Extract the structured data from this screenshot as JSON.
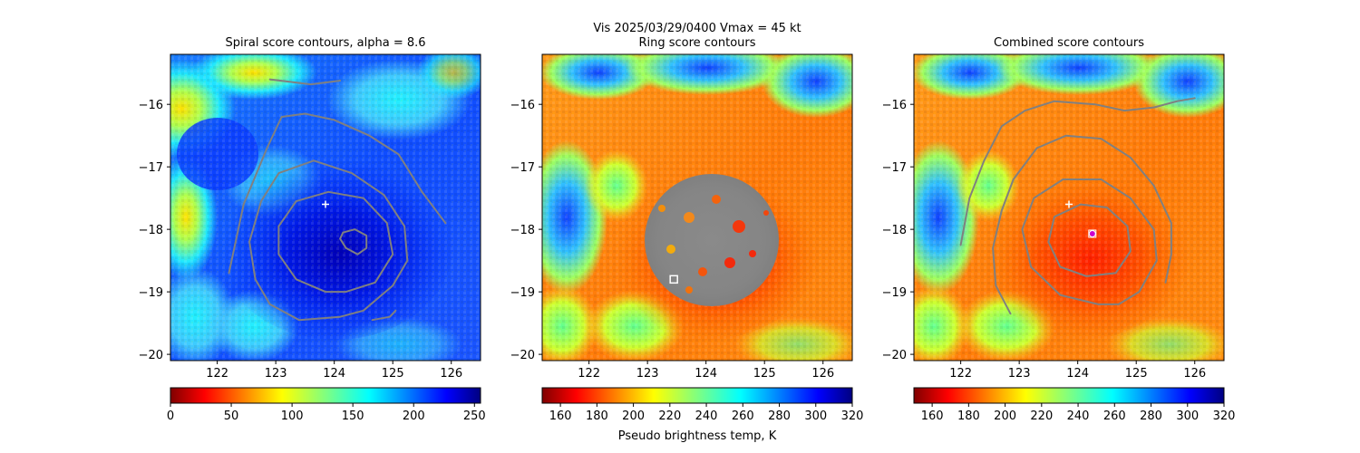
{
  "figure": {
    "suptitle_line1": "Vis  2025/03/29/0400    Vmax = 45 kt",
    "colorbar_label": "Pseudo brightness temp, K"
  },
  "colors": {
    "contour": "#808080",
    "marker": "#ffffff",
    "best_point": "#cc00cc"
  },
  "chart_data": [
    {
      "type": "heatmap",
      "title": "Spiral score contours, alpha =  8.6",
      "colormap": "jet_r",
      "xlim": [
        121.2,
        126.5
      ],
      "ylim": [
        -20.1,
        -15.2
      ],
      "xticks": [
        122,
        123,
        124,
        125,
        126
      ],
      "yticks": [
        -16,
        -17,
        -18,
        -19,
        -20
      ],
      "colorbar": {
        "min": 0,
        "max": 255,
        "ticks": [
          0,
          50,
          100,
          150,
          200,
          250
        ]
      },
      "markers": [
        {
          "label": "+",
          "x": 123.85,
          "y": -17.6
        }
      ],
      "contours": [
        [
          [
            122.2,
            -18.7
          ],
          [
            122.45,
            -17.6
          ],
          [
            122.85,
            -16.7
          ],
          [
            123.1,
            -16.2
          ],
          [
            123.5,
            -16.15
          ],
          [
            124.0,
            -16.25
          ],
          [
            124.6,
            -16.5
          ],
          [
            125.1,
            -16.8
          ],
          [
            125.5,
            -17.4
          ],
          [
            125.9,
            -17.9
          ]
        ],
        [
          [
            124.1,
            -19.4
          ],
          [
            123.4,
            -19.45
          ],
          [
            122.9,
            -19.2
          ],
          [
            122.65,
            -18.8
          ],
          [
            122.55,
            -18.2
          ],
          [
            122.75,
            -17.55
          ],
          [
            123.05,
            -17.1
          ],
          [
            123.65,
            -16.9
          ],
          [
            124.3,
            -17.1
          ],
          [
            124.85,
            -17.45
          ],
          [
            125.2,
            -17.95
          ],
          [
            125.25,
            -18.5
          ],
          [
            125.0,
            -18.9
          ],
          [
            124.5,
            -19.3
          ],
          [
            124.1,
            -19.4
          ]
        ],
        [
          [
            123.85,
            -19.0
          ],
          [
            123.35,
            -18.8
          ],
          [
            123.05,
            -18.4
          ],
          [
            123.05,
            -17.95
          ],
          [
            123.35,
            -17.55
          ],
          [
            123.9,
            -17.4
          ],
          [
            124.5,
            -17.5
          ],
          [
            124.9,
            -17.9
          ],
          [
            125.0,
            -18.4
          ],
          [
            124.7,
            -18.85
          ],
          [
            124.2,
            -19.0
          ],
          [
            123.85,
            -19.0
          ]
        ],
        [
          [
            124.15,
            -18.05
          ],
          [
            124.35,
            -18.0
          ],
          [
            124.55,
            -18.1
          ],
          [
            124.55,
            -18.3
          ],
          [
            124.4,
            -18.4
          ],
          [
            124.2,
            -18.3
          ],
          [
            124.1,
            -18.15
          ],
          [
            124.15,
            -18.05
          ]
        ],
        [
          [
            124.65,
            -19.45
          ],
          [
            124.95,
            -19.4
          ],
          [
            125.05,
            -19.3
          ]
        ],
        [
          [
            122.9,
            -15.6
          ],
          [
            123.6,
            -15.68
          ],
          [
            124.1,
            -15.62
          ]
        ]
      ]
    },
    {
      "type": "heatmap",
      "title": "Ring score contours",
      "colormap": "jet_r",
      "xlim": [
        121.2,
        126.5
      ],
      "ylim": [
        -20.1,
        -15.2
      ],
      "xticks": [
        122,
        123,
        124,
        125,
        126
      ],
      "yticks": [
        -16,
        -17,
        -18,
        -19,
        -20
      ],
      "colorbar": {
        "min": 150,
        "max": 320,
        "ticks": [
          160,
          180,
          200,
          220,
          240,
          260,
          280,
          300,
          320
        ]
      },
      "markers": [
        {
          "label": "square",
          "x": 123.45,
          "y": -18.8
        }
      ],
      "contours": []
    },
    {
      "type": "heatmap",
      "title": "Combined score contours",
      "colormap": "jet_r",
      "xlim": [
        121.2,
        126.5
      ],
      "ylim": [
        -20.1,
        -15.2
      ],
      "xticks": [
        122,
        123,
        124,
        125,
        126
      ],
      "yticks": [
        -16,
        -17,
        -18,
        -19,
        -20
      ],
      "colorbar": {
        "min": 150,
        "max": 320,
        "ticks": [
          160,
          180,
          200,
          220,
          240,
          260,
          280,
          300,
          320
        ]
      },
      "markers": [
        {
          "label": "+",
          "x": 123.85,
          "y": -17.6
        },
        {
          "label": "circle",
          "x": 124.25,
          "y": -18.07
        }
      ],
      "contours": [
        [
          [
            122.0,
            -18.25
          ],
          [
            122.15,
            -17.5
          ],
          [
            122.4,
            -16.9
          ],
          [
            122.7,
            -16.35
          ],
          [
            123.1,
            -16.1
          ],
          [
            123.6,
            -15.95
          ],
          [
            124.3,
            -16.0
          ],
          [
            124.8,
            -16.1
          ],
          [
            125.3,
            -16.05
          ],
          [
            125.7,
            -15.95
          ],
          [
            126.0,
            -15.9
          ]
        ],
        [
          [
            122.85,
            -19.35
          ],
          [
            122.6,
            -18.9
          ],
          [
            122.55,
            -18.3
          ],
          [
            122.7,
            -17.7
          ],
          [
            122.9,
            -17.2
          ],
          [
            123.3,
            -16.7
          ],
          [
            123.8,
            -16.5
          ],
          [
            124.4,
            -16.55
          ],
          [
            124.9,
            -16.85
          ],
          [
            125.3,
            -17.3
          ],
          [
            125.6,
            -17.9
          ],
          [
            125.6,
            -18.4
          ],
          [
            125.5,
            -18.85
          ]
        ],
        [
          [
            124.35,
            -19.2
          ],
          [
            123.7,
            -19.05
          ],
          [
            123.2,
            -18.6
          ],
          [
            123.05,
            -18.0
          ],
          [
            123.25,
            -17.5
          ],
          [
            123.75,
            -17.2
          ],
          [
            124.4,
            -17.2
          ],
          [
            124.9,
            -17.5
          ],
          [
            125.3,
            -18.0
          ],
          [
            125.35,
            -18.5
          ],
          [
            125.05,
            -19.0
          ],
          [
            124.7,
            -19.2
          ],
          [
            124.35,
            -19.2
          ]
        ],
        [
          [
            124.15,
            -18.75
          ],
          [
            123.7,
            -18.6
          ],
          [
            123.5,
            -18.2
          ],
          [
            123.6,
            -17.8
          ],
          [
            124.05,
            -17.6
          ],
          [
            124.5,
            -17.65
          ],
          [
            124.85,
            -17.95
          ],
          [
            124.9,
            -18.35
          ],
          [
            124.65,
            -18.7
          ],
          [
            124.15,
            -18.75
          ]
        ]
      ]
    }
  ]
}
